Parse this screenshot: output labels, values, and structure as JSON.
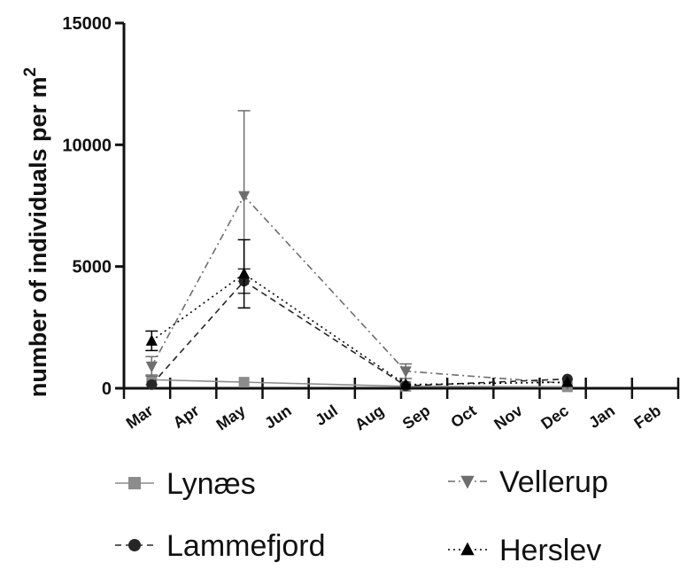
{
  "chart_data": {
    "type": "line",
    "title": "",
    "xlabel": "",
    "ylabel": "number of individuals per m",
    "ylabel_superscript": "2",
    "ylim": [
      0,
      15000
    ],
    "yticks": [
      "0",
      "5000",
      "10000",
      "15000"
    ],
    "categories": [
      "Mar",
      "Apr",
      "May",
      "Jun",
      "Jul",
      "Aug",
      "Sep",
      "Oct",
      "Nov",
      "Dec",
      "Jan",
      "Feb"
    ],
    "legend_position": "bottom",
    "series": [
      {
        "name": "Lynæs",
        "color": "#8c8c8c",
        "marker": "square",
        "dash": "solid",
        "points": [
          {
            "x": 0.6,
            "y": 350,
            "err": 200
          },
          {
            "x": 2.6,
            "y": 250,
            "err": 0
          },
          {
            "x": 6.1,
            "y": 80,
            "err": 0
          },
          {
            "x": 9.6,
            "y": 60,
            "err": 0
          }
        ]
      },
      {
        "name": "Vellerup",
        "color": "#6e6e6e",
        "marker": "triangle-down",
        "dash": "dashdot",
        "points": [
          {
            "x": 0.6,
            "y": 900,
            "err": 400
          },
          {
            "x": 2.6,
            "y": 7900,
            "err": 3500
          },
          {
            "x": 6.1,
            "y": 700,
            "err": 300
          },
          {
            "x": 9.6,
            "y": 200,
            "err": 0
          }
        ]
      },
      {
        "name": "Lammefjord",
        "color": "#262626",
        "marker": "circle",
        "dash": "dashed",
        "points": [
          {
            "x": 0.6,
            "y": 150,
            "err": 0
          },
          {
            "x": 2.6,
            "y": 4400,
            "err": 500
          },
          {
            "x": 6.1,
            "y": 100,
            "err": 0
          },
          {
            "x": 9.6,
            "y": 380,
            "err": 0
          }
        ]
      },
      {
        "name": "Herslev",
        "color": "#000000",
        "marker": "triangle-up",
        "dash": "dotted",
        "points": [
          {
            "x": 0.6,
            "y": 1950,
            "err": 400
          },
          {
            "x": 2.6,
            "y": 4700,
            "err": 1400
          },
          {
            "x": 6.1,
            "y": 150,
            "err": 0
          },
          {
            "x": 9.6,
            "y": 250,
            "err": 0
          }
        ]
      }
    ]
  }
}
